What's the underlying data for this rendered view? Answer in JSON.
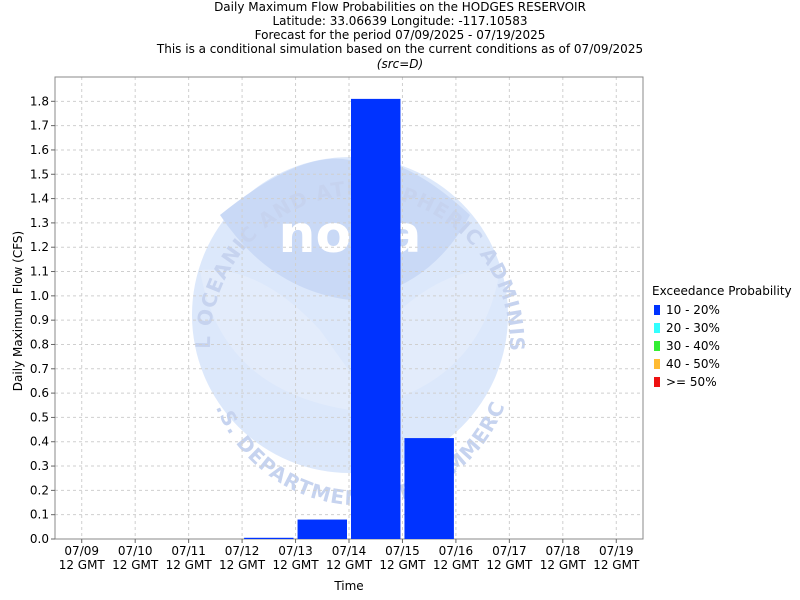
{
  "titles": {
    "line1": "Daily Maximum Flow Probabilities on the HODGES RESERVOIR",
    "line2": "Latitude: 33.06639 Longitude: -117.10583",
    "line3": "Forecast for the period 07/09/2025 - 07/19/2025",
    "line4": "This is a conditional simulation based on the current conditions as of 07/09/2025",
    "line5": "(src=D)"
  },
  "legend": {
    "title": "Exceedance Probability",
    "items": [
      {
        "label": "10 - 20%",
        "color": "#0033ff"
      },
      {
        "label": "20 - 30%",
        "color": "#33ffff"
      },
      {
        "label": "30 - 40%",
        "color": "#33ee33"
      },
      {
        "label": "40 - 50%",
        "color": "#ffbb33"
      },
      {
        "label": ">= 50%",
        "color": "#ee1111"
      }
    ]
  },
  "watermark": {
    "arc_top": "NATIONAL OCEANIC AND ATMOSPHERIC ADMINISTRATION",
    "arc_bottom": "U.S. DEPARTMENT OF COMMERCE",
    "center": "noaa"
  },
  "chart_data": {
    "type": "bar",
    "title": "Daily Maximum Flow Probabilities on the HODGES RESERVOIR",
    "xlabel": "Time",
    "ylabel": "Daily Maximum Flow (CFS)",
    "ylim": [
      0,
      1.9
    ],
    "yticks": [
      "0.0",
      "0.1",
      "0.2",
      "0.3",
      "0.4",
      "0.5",
      "0.6",
      "0.7",
      "0.8",
      "0.9",
      "1.0",
      "1.1",
      "1.2",
      "1.3",
      "1.4",
      "1.5",
      "1.6",
      "1.7",
      "1.8"
    ],
    "categories": [
      [
        "07/09",
        "12 GMT"
      ],
      [
        "07/10",
        "12 GMT"
      ],
      [
        "07/11",
        "12 GMT"
      ],
      [
        "07/12",
        "12 GMT"
      ],
      [
        "07/13",
        "12 GMT"
      ],
      [
        "07/14",
        "12 GMT"
      ],
      [
        "07/15",
        "12 GMT"
      ],
      [
        "07/16",
        "12 GMT"
      ],
      [
        "07/17",
        "12 GMT"
      ],
      [
        "07/18",
        "12 GMT"
      ],
      [
        "07/19",
        "12 GMT"
      ]
    ],
    "bars": [
      {
        "start": 3,
        "end": 4,
        "value": 0.005
      },
      {
        "start": 4,
        "end": 5,
        "value": 0.08
      },
      {
        "start": 5,
        "end": 6,
        "value": 1.81
      },
      {
        "start": 6,
        "end": 7,
        "value": 0.415
      }
    ],
    "series_name": "10 - 20%",
    "bar_color": "#0033ff",
    "grid": true
  }
}
